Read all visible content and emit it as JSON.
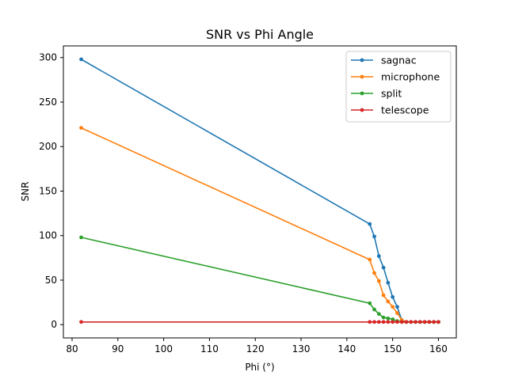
{
  "chart_data": {
    "type": "line",
    "title": "SNR vs Phi Angle",
    "xlabel": "Phi (°)",
    "ylabel": "SNR",
    "xlim": [
      78.1,
      163.9
    ],
    "ylim": [
      -14.9,
      313.1
    ],
    "xticks": [
      80,
      90,
      100,
      110,
      120,
      130,
      140,
      150,
      160
    ],
    "yticks": [
      0,
      50,
      100,
      150,
      200,
      250,
      300
    ],
    "grid": false,
    "legend_position": "top-right",
    "x": [
      82,
      145,
      146,
      147,
      148,
      149,
      150,
      151,
      152,
      153,
      154,
      155,
      156,
      157,
      158,
      159,
      160
    ],
    "series": [
      {
        "name": "sagnac",
        "color": "#1f77b4",
        "values": [
          298,
          113,
          99,
          77,
          64,
          47,
          31,
          20,
          5,
          3,
          3,
          3,
          3,
          3,
          3,
          3,
          3
        ]
      },
      {
        "name": "microphone",
        "color": "#ff7f0e",
        "values": [
          221,
          73,
          58,
          49,
          33,
          26,
          20,
          13,
          5,
          3,
          3,
          3,
          3,
          3,
          3,
          3,
          3
        ]
      },
      {
        "name": "split",
        "color": "#2ca02c",
        "values": [
          98,
          24,
          17,
          12,
          8,
          7,
          6,
          4,
          3,
          3,
          3,
          3,
          3,
          3,
          3,
          3,
          3
        ]
      },
      {
        "name": "telescope",
        "color": "#d62728",
        "values": [
          3,
          3,
          3,
          3,
          3,
          3,
          3,
          3,
          3,
          3,
          3,
          3,
          3,
          3,
          3,
          3,
          3
        ]
      }
    ]
  }
}
